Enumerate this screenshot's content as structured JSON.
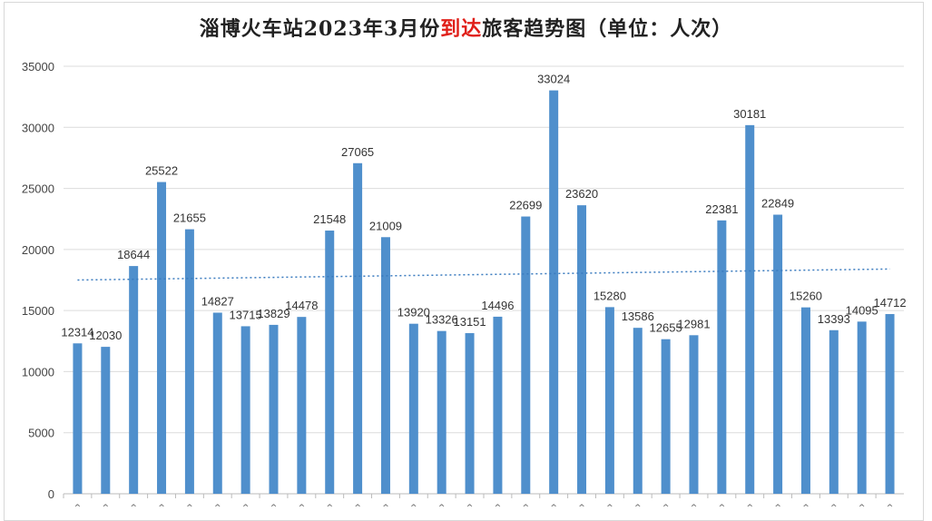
{
  "chart_data": {
    "type": "bar",
    "title": "淄博火车站2023年3月份到达旅客趋势图（单位：人次）",
    "title_parts": [
      "淄博火车站2023年3月份",
      "到达",
      "旅客趋势图（单位：人次）"
    ],
    "highlight_color": "#e0201a",
    "bar_color": "#4f8fcc",
    "trend_color": "#3a7bbf",
    "xlabel": "",
    "ylabel": "",
    "ylim": [
      0,
      35000
    ],
    "yticks": [
      0,
      5000,
      10000,
      15000,
      20000,
      25000,
      30000,
      35000
    ],
    "grid": true,
    "values": [
      12314,
      12030,
      18644,
      25522,
      21655,
      14827,
      13715,
      13829,
      14478,
      21548,
      27065,
      21009,
      13920,
      13326,
      13151,
      14496,
      22699,
      33024,
      23620,
      15280,
      13586,
      12655,
      12981,
      22381,
      30181,
      22849,
      15260,
      13393,
      14095,
      14712
    ],
    "trendline": {
      "type": "linear",
      "start": 17500,
      "end": 18400
    }
  }
}
